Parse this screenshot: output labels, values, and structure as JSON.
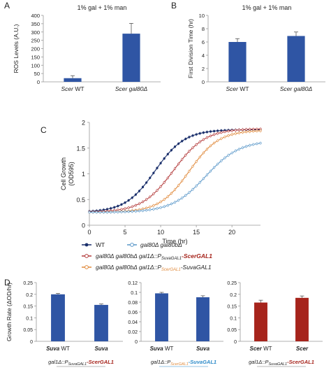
{
  "colors": {
    "blue": "#2f55a4",
    "red": "#a6241c",
    "wt_line": "#1a2f6b",
    "gal80_line": "#5b98c9",
    "red_line": "#b33a3a",
    "orange_line": "#e08a3c",
    "scer_blue_text": "#2d8bc9",
    "orange_text": "#e08a3c"
  },
  "panel_labels": {
    "a": "A",
    "b": "B",
    "c": "C",
    "d": "D"
  },
  "chart_data": [
    {
      "id": "A",
      "type": "bar",
      "title": "1% gal + 1% man",
      "ylabel": "ROS Levels (A.U.)",
      "categories": [
        "Scer WT",
        "Scer gal80Δ"
      ],
      "values": [
        22,
        290
      ],
      "errors": [
        15,
        62
      ],
      "ylim": [
        0,
        400
      ],
      "yticks": [
        "0",
        "50",
        "100",
        "150",
        "200",
        "250",
        "300",
        "350",
        "400"
      ],
      "color": "#2f55a4"
    },
    {
      "id": "B",
      "type": "bar",
      "title": "1% gal + 1% man",
      "ylabel": "First Division Time (hr)",
      "categories": [
        "Scer WT",
        "Scer gal80Δ"
      ],
      "values": [
        6.0,
        6.9
      ],
      "errors": [
        0.5,
        0.6
      ],
      "ylim": [
        0,
        10
      ],
      "yticks": [
        "0",
        "2",
        "4",
        "6",
        "8",
        "10"
      ],
      "color": "#2f55a4"
    },
    {
      "id": "C",
      "type": "line",
      "ylabel_line1": "Cell Growth",
      "ylabel_line2": "(OD595)",
      "xlabel": "Time (hr)",
      "xlim": [
        0,
        24
      ],
      "ylim": [
        0,
        2
      ],
      "xticks": [
        "0",
        "5",
        "10",
        "15",
        "20"
      ],
      "yticks": [
        "0",
        "0.5",
        "1",
        "1.5",
        "2"
      ],
      "series": [
        {
          "key": "wt",
          "base": 0.25,
          "top": 1.86,
          "mid": 9.2,
          "k": 0.48
        },
        {
          "key": "red",
          "base": 0.25,
          "top": 1.88,
          "mid": 11.8,
          "k": 0.45
        },
        {
          "key": "orange",
          "base": 0.25,
          "top": 1.85,
          "mid": 14.0,
          "k": 0.48
        },
        {
          "key": "gal80",
          "base": 0.25,
          "top": 1.65,
          "mid": 16.3,
          "k": 0.42
        }
      ],
      "legend": {
        "wt": "WT",
        "gal80": "gal80Δ gal80bΔ",
        "red_prefix": "gal80Δ gal80bΔ gal1Δ::P",
        "red_sub": "SuvaGAL1",
        "red_suffix": "-ScerGAL1",
        "orange_prefix": "gal80Δ gal80bΔ gal1Δ::P",
        "orange_sub": "ScerGAL1",
        "orange_suffix": "-SuvaGAL1"
      }
    },
    {
      "id": "D1",
      "type": "bar",
      "ylabel": "Growth Rate (ΔOD/hr)",
      "categories": [
        "Suva WT",
        "Suva"
      ],
      "values": [
        0.2,
        0.155
      ],
      "errors": [
        0.004,
        0.004
      ],
      "ylim": [
        0,
        0.25
      ],
      "yticks": [
        "0",
        "0.05",
        "0.1",
        "0.15",
        "0.2",
        "0.25"
      ],
      "color": "#2f55a4",
      "footer_prefix": "gal1Δ::P",
      "footer_sub": "SuvaGAL1",
      "footer_suffix": "-ScerGAL1"
    },
    {
      "id": "D2",
      "type": "bar",
      "categories": [
        "Suva WT",
        "Suva"
      ],
      "values": [
        0.098,
        0.09
      ],
      "errors": [
        0.002,
        0.003
      ],
      "ylim": [
        0,
        0.12
      ],
      "yticks": [
        "0",
        "0.02",
        "0.04",
        "0.06",
        "0.08",
        "0.1",
        "0.12"
      ],
      "color": "#2f55a4",
      "footer_prefix": "gal1Δ::P",
      "footer_sub": "ScerGAL1",
      "footer_suffix": "-SuvaGAL1"
    },
    {
      "id": "D3",
      "type": "bar",
      "categories": [
        "Scer WT",
        "Scer"
      ],
      "values": [
        0.165,
        0.185
      ],
      "errors": [
        0.01,
        0.008
      ],
      "ylim": [
        0,
        0.25
      ],
      "yticks": [
        "0",
        "0.05",
        "0.1",
        "0.15",
        "0.2",
        "0.25"
      ],
      "color": "#a6241c",
      "footer_prefix": "gal1Δ::P",
      "footer_sub": "SuvaGAL1",
      "footer_suffix": "-ScerGAL1"
    }
  ]
}
